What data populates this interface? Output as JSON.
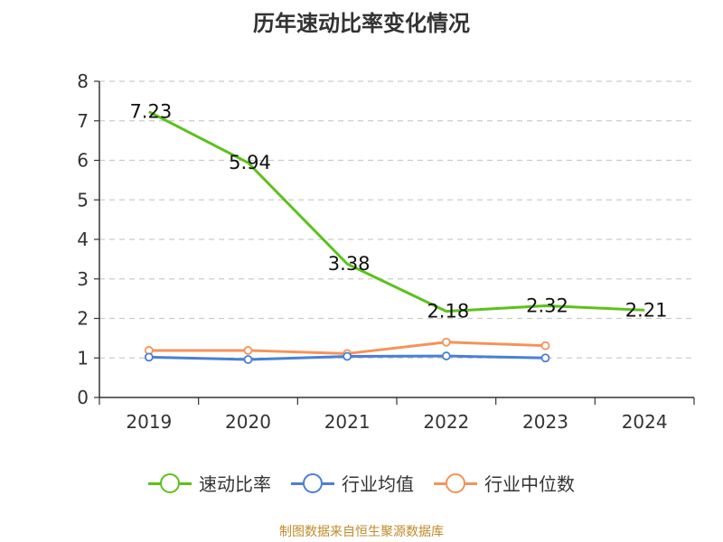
{
  "chart_data": {
    "type": "line",
    "title": "历年速动比率变化情况",
    "categories": [
      "2019",
      "2020",
      "2021",
      "2022",
      "2023",
      "2024"
    ],
    "ylim": [
      0,
      8
    ],
    "yticks": [
      0,
      1,
      2,
      3,
      4,
      5,
      6,
      7,
      8
    ],
    "grid": true,
    "legend_position": "bottom",
    "series": [
      {
        "name": "速动比率",
        "color": "#5bc21a",
        "values": [
          7.23,
          5.94,
          3.38,
          2.18,
          2.32,
          2.21
        ],
        "labels": [
          "7.23",
          "5.94",
          "3.38",
          "2.18",
          "2.32",
          "2.21"
        ]
      },
      {
        "name": "行业均值",
        "color": "#4a7fd6",
        "values": [
          1.02,
          0.96,
          1.04,
          1.05,
          1.0,
          null
        ]
      },
      {
        "name": "行业中位数",
        "color": "#f5925a",
        "values": [
          1.19,
          1.19,
          1.11,
          1.4,
          1.31,
          null
        ]
      }
    ]
  },
  "source": "制图数据来自恒生聚源数据库"
}
